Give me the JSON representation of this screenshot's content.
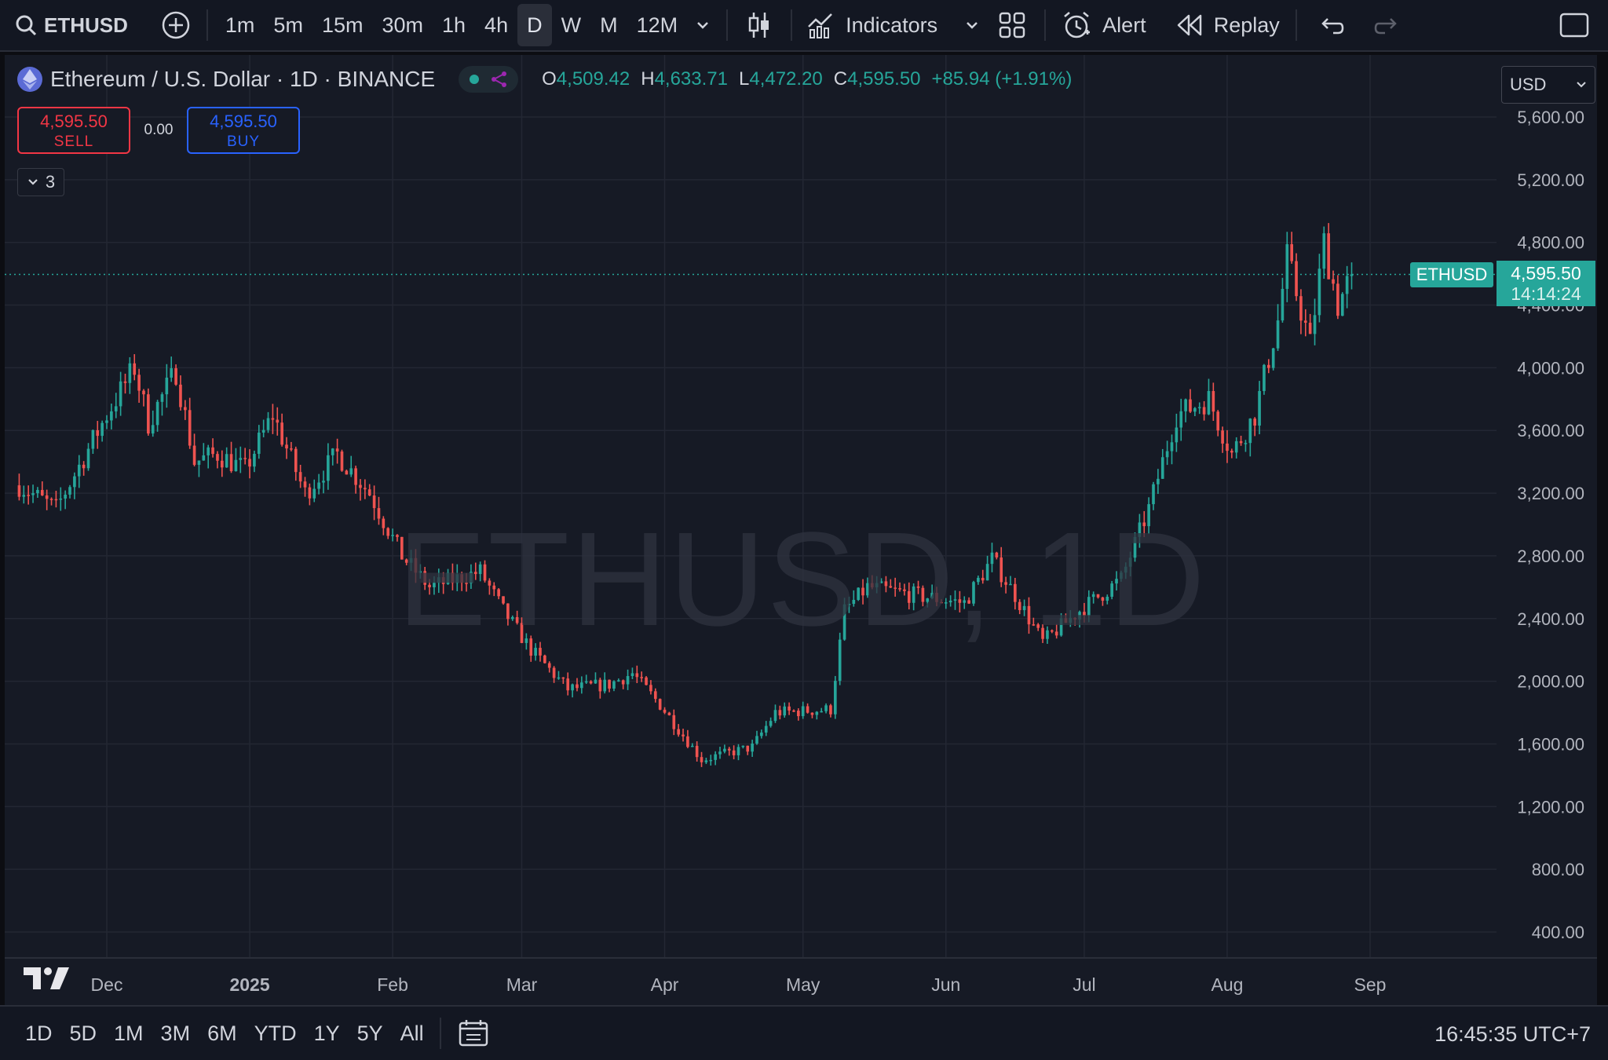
{
  "toolbar": {
    "symbol": "ETHUSD",
    "timeframes": [
      "1m",
      "5m",
      "15m",
      "30m",
      "1h",
      "4h",
      "D",
      "W",
      "M",
      "12M"
    ],
    "active_timeframe": "D",
    "indicators_label": "Indicators",
    "alert_label": "Alert",
    "replay_label": "Replay"
  },
  "legend": {
    "title": "Ethereum / U.S. Dollar · 1D · BINANCE",
    "open_key": "O",
    "open": "4,509.42",
    "high_key": "H",
    "high": "4,633.71",
    "low_key": "L",
    "low": "4,472.20",
    "close_key": "C",
    "close": "4,595.50",
    "change": "+85.94 (+1.91%)"
  },
  "trade": {
    "sell_price": "4,595.50",
    "sell_label": "SELL",
    "spread": "0.00",
    "buy_price": "4,595.50",
    "buy_label": "BUY",
    "indicator_count": "3"
  },
  "currency": "USD",
  "watermark": "ETHUSD, 1D",
  "price_tag": {
    "symbol": "ETHUSD",
    "price": "4,595.50",
    "countdown": "14:14:24"
  },
  "bottombar": {
    "ranges": [
      "1D",
      "5D",
      "1M",
      "3M",
      "6M",
      "YTD",
      "1Y",
      "5Y",
      "All"
    ],
    "clock": "16:45:35 UTC+7"
  },
  "colors": {
    "up": "#26a69a",
    "down": "#ef5350",
    "background": "#161a25",
    "grid": "#232733",
    "sell": "#f23645",
    "buy": "#2962ff"
  },
  "icons": [
    "search-icon",
    "add-symbol-icon",
    "chevron-down-icon",
    "candles-icon",
    "indicators-icon",
    "layout-icon",
    "alert-icon",
    "replay-icon",
    "undo-icon",
    "redo-icon",
    "fullscreen-icon",
    "tradingview-logo",
    "settings-icon",
    "date-range-icon"
  ],
  "chart_data": {
    "type": "candlestick",
    "title": "Ethereum / U.S. Dollar · 1D · BINANCE",
    "ylim": [
      200,
      5800
    ],
    "y_ticks": [
      "5,600.00",
      "5,200.00",
      "4,800.00",
      "4,400.00",
      "4,000.00",
      "3,600.00",
      "3,200.00",
      "2,800.00",
      "2,400.00",
      "2,000.00",
      "1,600.00",
      "1,200.00",
      "800.00",
      "400.00"
    ],
    "y_tick_values": [
      5600,
      5200,
      4800,
      4400,
      4000,
      3600,
      3200,
      2800,
      2400,
      2000,
      1600,
      1200,
      800,
      400
    ],
    "x_ticks": [
      "Dec",
      "2025",
      "Feb",
      "Mar",
      "Apr",
      "May",
      "Jun",
      "Jul",
      "Aug",
      "Sep"
    ],
    "x_tick_dates": [
      "2024-12-01",
      "2025-01-01",
      "2025-02-01",
      "2025-03-01",
      "2025-04-01",
      "2025-05-01",
      "2025-06-01",
      "2025-07-01",
      "2025-08-01",
      "2025-09-01"
    ],
    "last_price": 4595.5,
    "daily_close_path": [
      {
        "date": "2024-11-12",
        "close": 3250
      },
      {
        "date": "2024-11-20",
        "close": 3100
      },
      {
        "date": "2024-12-01",
        "close": 3700
      },
      {
        "date": "2024-12-07",
        "close": 4000
      },
      {
        "date": "2024-12-10",
        "close": 3650
      },
      {
        "date": "2024-12-16",
        "close": 3980
      },
      {
        "date": "2024-12-20",
        "close": 3400
      },
      {
        "date": "2024-12-25",
        "close": 3450
      },
      {
        "date": "2024-12-31",
        "close": 3350
      },
      {
        "date": "2025-01-06",
        "close": 3700
      },
      {
        "date": "2025-01-13",
        "close": 3200
      },
      {
        "date": "2025-01-20",
        "close": 3450
      },
      {
        "date": "2025-01-27",
        "close": 3200
      },
      {
        "date": "2025-02-03",
        "close": 2800
      },
      {
        "date": "2025-02-09",
        "close": 2600
      },
      {
        "date": "2025-02-20",
        "close": 2700
      },
      {
        "date": "2025-02-25",
        "close": 2450
      },
      {
        "date": "2025-03-03",
        "close": 2200
      },
      {
        "date": "2025-03-11",
        "close": 1950
      },
      {
        "date": "2025-03-20",
        "close": 1980
      },
      {
        "date": "2025-03-25",
        "close": 2050
      },
      {
        "date": "2025-03-31",
        "close": 1850
      },
      {
        "date": "2025-04-09",
        "close": 1500
      },
      {
        "date": "2025-04-20",
        "close": 1580
      },
      {
        "date": "2025-04-25",
        "close": 1800
      },
      {
        "date": "2025-05-07",
        "close": 1820
      },
      {
        "date": "2025-05-10",
        "close": 2450
      },
      {
        "date": "2025-05-15",
        "close": 2600
      },
      {
        "date": "2025-05-25",
        "close": 2550
      },
      {
        "date": "2025-06-05",
        "close": 2500
      },
      {
        "date": "2025-06-11",
        "close": 2780
      },
      {
        "date": "2025-06-16",
        "close": 2550
      },
      {
        "date": "2025-06-22",
        "close": 2250
      },
      {
        "date": "2025-06-30",
        "close": 2450
      },
      {
        "date": "2025-07-09",
        "close": 2650
      },
      {
        "date": "2025-07-15",
        "close": 3100
      },
      {
        "date": "2025-07-21",
        "close": 3700
      },
      {
        "date": "2025-07-28",
        "close": 3800
      },
      {
        "date": "2025-08-02",
        "close": 3450
      },
      {
        "date": "2025-08-07",
        "close": 3700
      },
      {
        "date": "2025-08-12",
        "close": 4300
      },
      {
        "date": "2025-08-14",
        "close": 4700
      },
      {
        "date": "2025-08-19",
        "close": 4150
      },
      {
        "date": "2025-08-22",
        "close": 4800
      },
      {
        "date": "2025-08-25",
        "close": 4400
      },
      {
        "date": "2025-08-28",
        "close": 4595.5
      }
    ]
  }
}
